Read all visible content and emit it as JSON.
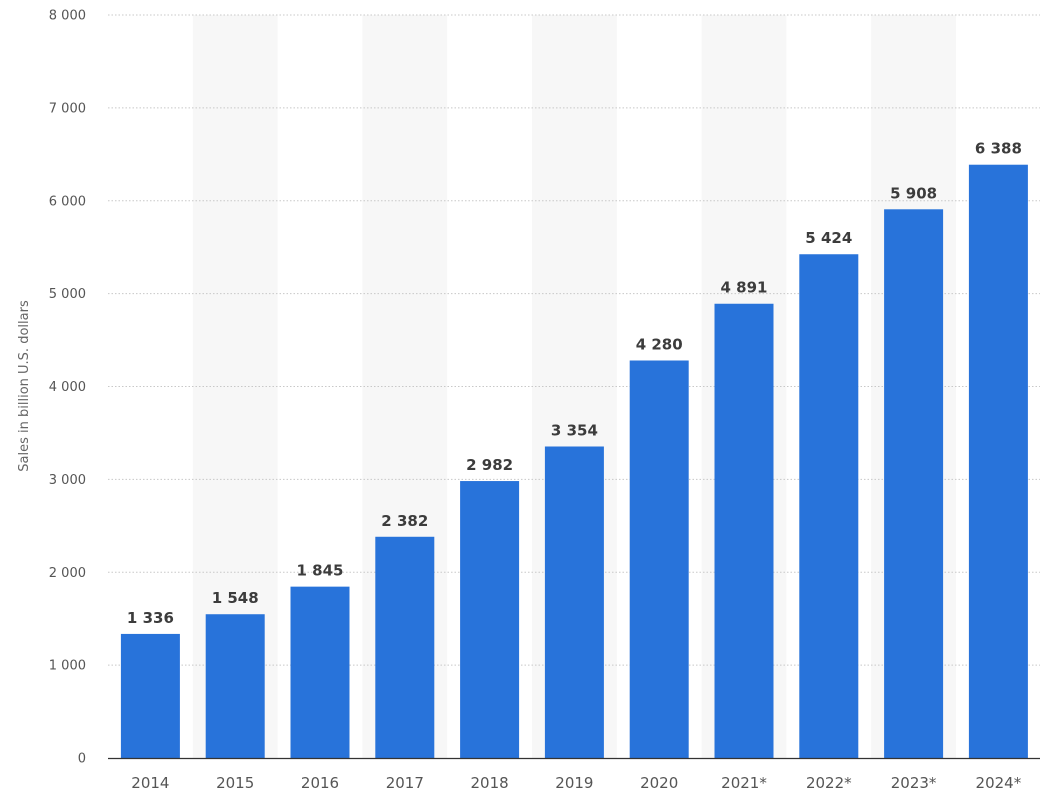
{
  "chart_data": {
    "type": "bar",
    "ylabel": "Sales in billion U.S. dollars",
    "ylim": [
      0,
      8000
    ],
    "yticks": [
      0,
      1000,
      2000,
      3000,
      4000,
      5000,
      6000,
      7000,
      8000
    ],
    "ytick_labels": [
      "0",
      "1 000",
      "2 000",
      "3 000",
      "4 000",
      "5 000",
      "6 000",
      "7 000",
      "8 000"
    ],
    "categories": [
      "2014",
      "2015",
      "2016",
      "2017",
      "2018",
      "2019",
      "2020",
      "2021*",
      "2022*",
      "2023*",
      "2024*"
    ],
    "values": [
      1336,
      1548,
      1845,
      2382,
      2982,
      3354,
      4280,
      4891,
      5424,
      5908,
      6388
    ],
    "value_labels": [
      "1 336",
      "1 548",
      "1 845",
      "2 382",
      "2 982",
      "3 354",
      "4 280",
      "4 891",
      "5 424",
      "5 908",
      "6 388"
    ],
    "grid": true,
    "colors": {
      "bar": "#2873da",
      "band": "#f7f7f7",
      "grid": "#c8c8c8",
      "axis": "#333333"
    }
  }
}
